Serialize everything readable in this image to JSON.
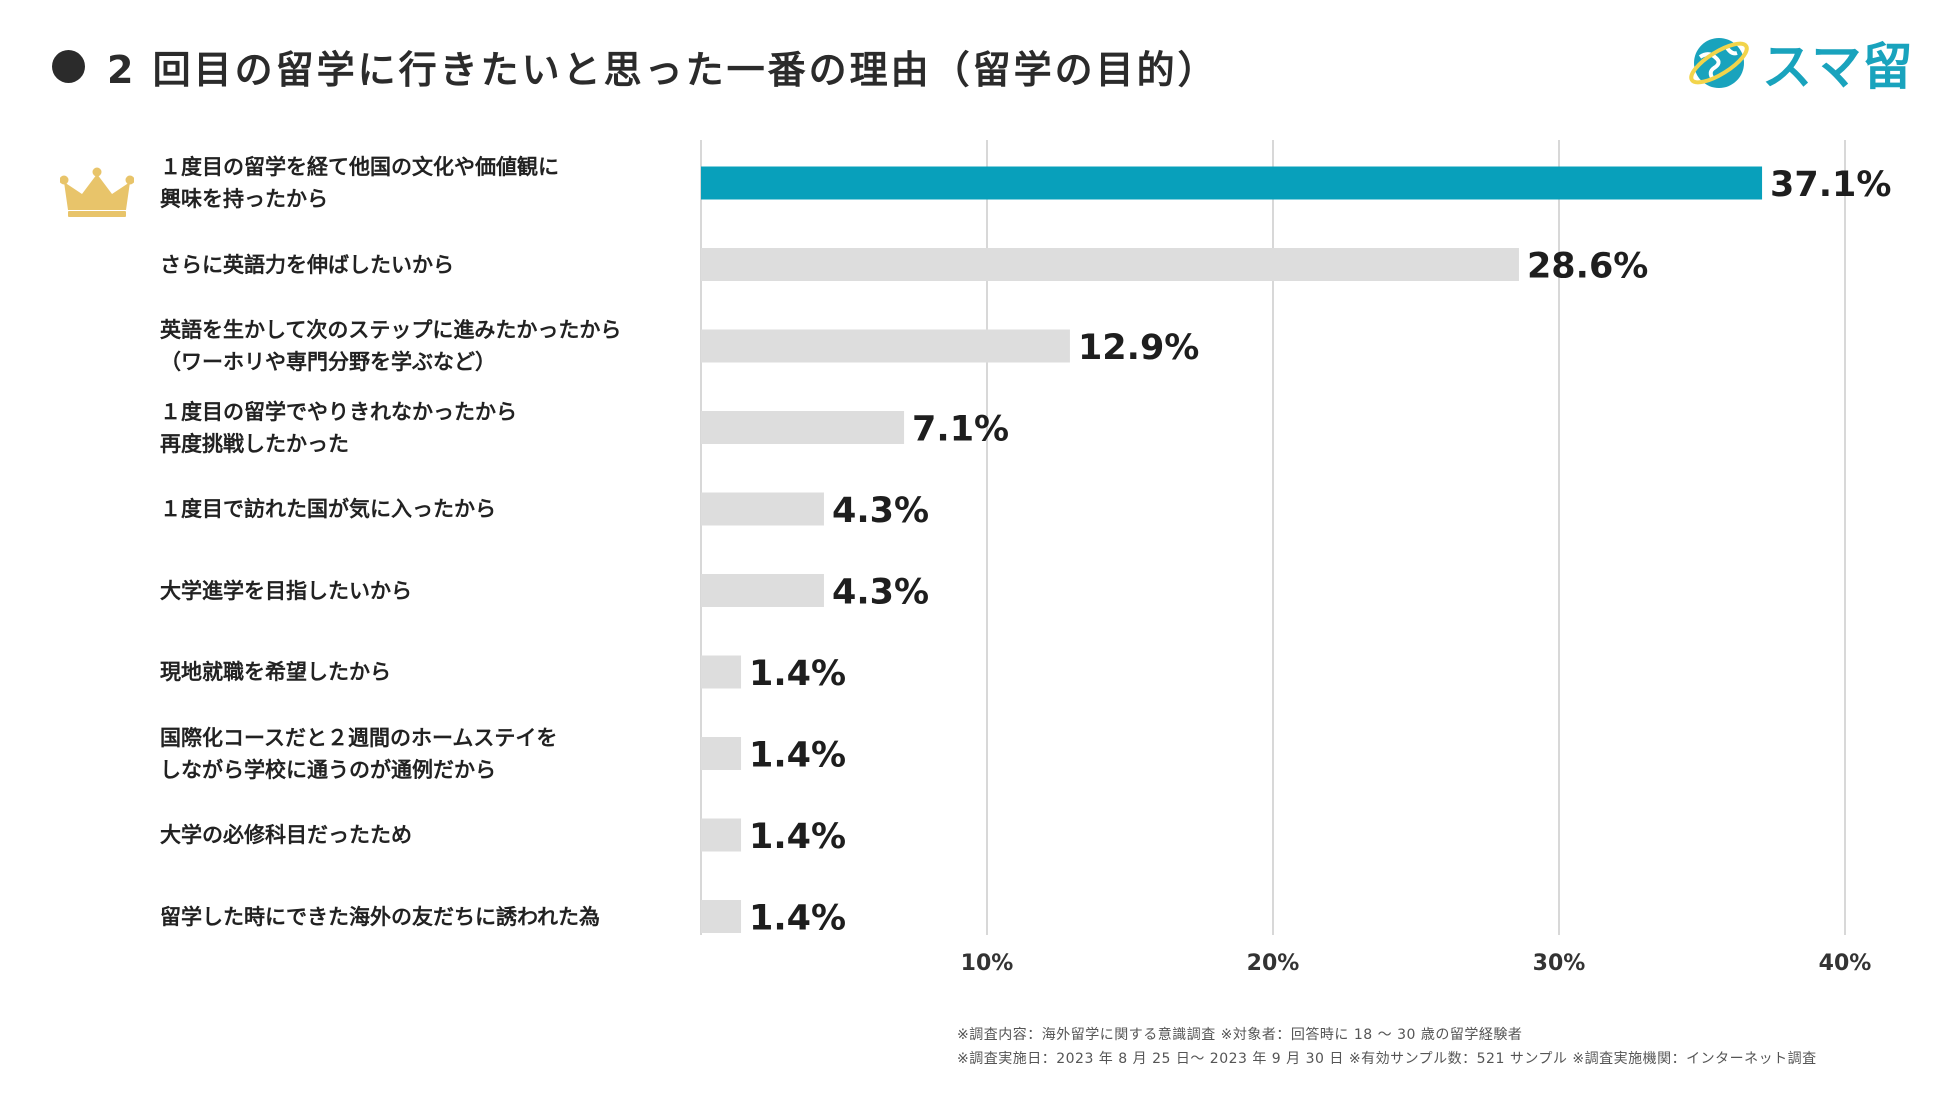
{
  "header": {
    "title": "2 回目の留学に行きたいと思った一番の理由（留学の目的）"
  },
  "logo": {
    "text": "スマ留"
  },
  "colors": {
    "highlight": "#08a0bb",
    "bar": "#dddddd",
    "grid": "#cccccc",
    "brand": "#19a3bd",
    "crown": "#e8c46a"
  },
  "chart_data": {
    "type": "bar",
    "orientation": "horizontal",
    "title": "2 回目の留学に行きたいと思った一番の理由（留学の目的）",
    "categories": [
      "１度目の留学を経て他国の文化や価値観に\n興味を持ったから",
      "さらに英語力を伸ばしたいから",
      "英語を生かして次のステップに進みたかったから\n（ワーホリや専門分野を学ぶなど）",
      "１度目の留学でやりきれなかったから\n再度挑戦したかった",
      "１度目で訪れた国が気に入ったから",
      "大学進学を目指したいから",
      "現地就職を希望したから",
      "国際化コースだと２週間のホームステイを\nしながら学校に通うのが通例だから",
      "大学の必修科目だったため",
      "留学した時にできた海外の友だちに誘われた為"
    ],
    "values": [
      37.1,
      28.6,
      12.9,
      7.1,
      4.3,
      4.3,
      1.4,
      1.4,
      1.4,
      1.4
    ],
    "value_labels": [
      "37.1%",
      "28.6%",
      "12.9%",
      "7.1%",
      "4.3%",
      "4.3%",
      "1.4%",
      "1.4%",
      "1.4%",
      "1.4%"
    ],
    "xlim": [
      0,
      40
    ],
    "xticks": [
      10,
      20,
      30,
      40
    ],
    "xtick_labels": [
      "10%",
      "20%",
      "30%",
      "40%"
    ],
    "grid": true,
    "highlight_index": 0
  },
  "footnotes": [
    "※調査内容：海外留学に関する意識調査 ※対象者：回答時に 18 〜 30 歳の留学経験者",
    "※調査実施日：2023 年 8 月 25 日〜 2023 年 9 月 30 日 ※有効サンプル数：521 サンプル ※調査実施機関：インターネット調査"
  ]
}
